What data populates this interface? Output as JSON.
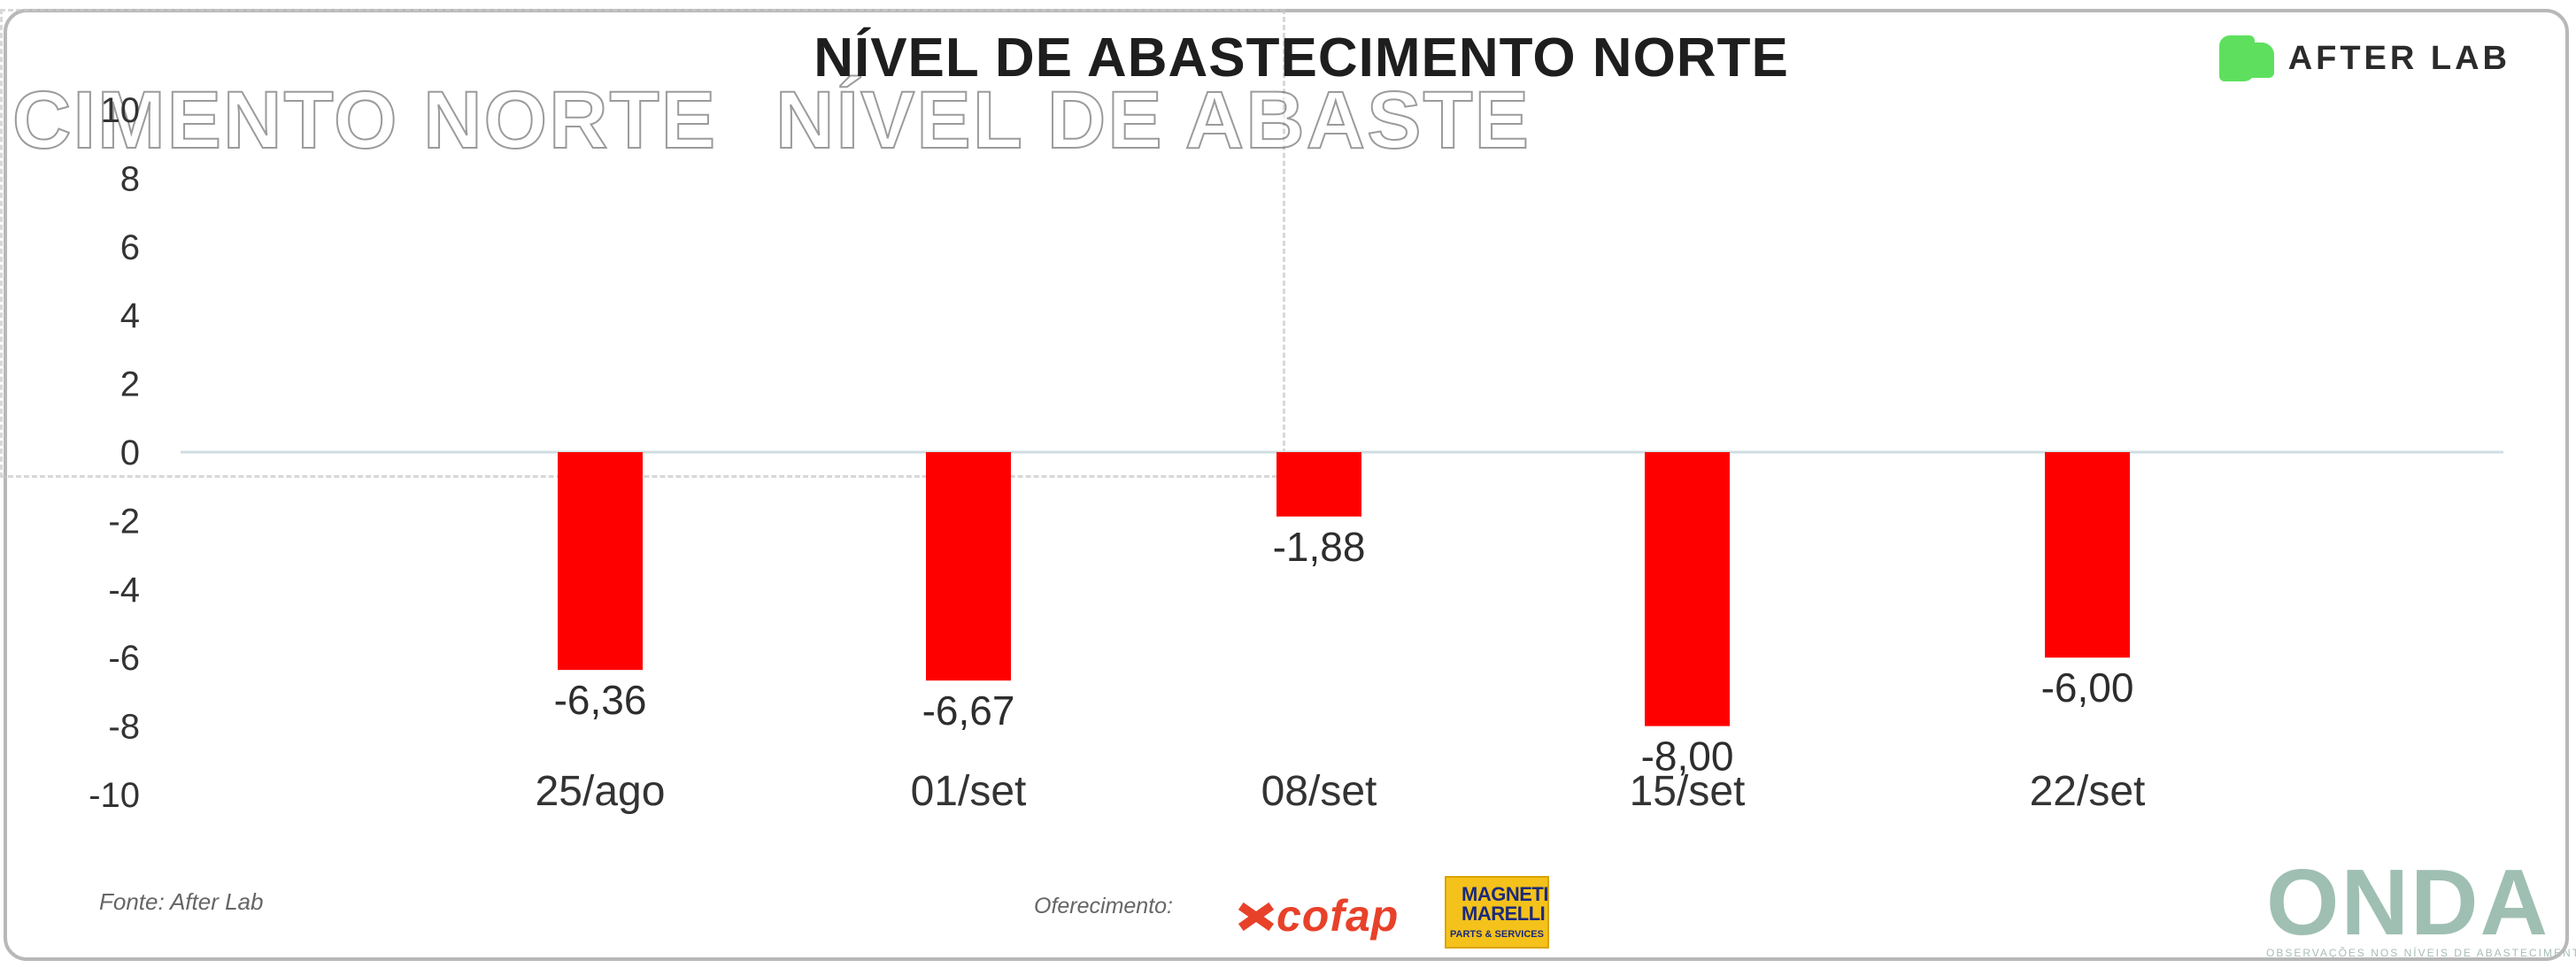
{
  "header": {
    "title": "NÍVEL DE ABASTECIMENTO NORTE",
    "ghost_left": "CIMENTO NORTE",
    "ghost_right": "NÍVEL DE ABASTE",
    "brand": "AFTER LAB",
    "brand_icon": "afterlab-logo-icon",
    "brand_color": "#5ee05e"
  },
  "chart_data": {
    "type": "bar",
    "title": "NÍVEL DE ABASTECIMENTO NORTE",
    "categories": [
      "25/ago",
      "01/set",
      "08/set",
      "15/set",
      "22/set"
    ],
    "values": [
      -6.36,
      -6.67,
      -1.88,
      -8.0,
      -6.0
    ],
    "data_labels": [
      "-6,36",
      "-6,67",
      "-1,88",
      "-8,00",
      "-6,00"
    ],
    "bar_color": "#ff0000",
    "ylim": [
      -10,
      10
    ],
    "yticks": [
      10,
      8,
      6,
      4,
      2,
      0,
      -2,
      -4,
      -6,
      -8,
      -10
    ],
    "ytick_labels": [
      "10",
      "8",
      "6",
      "4",
      "2",
      "0",
      "-2",
      "-4",
      "-6",
      "-8",
      "-10"
    ],
    "xlabel": "",
    "ylabel": "",
    "grid": false,
    "legend": "none"
  },
  "footer": {
    "source": "Fonte: After Lab",
    "sponsor_label": "Oferecimento:",
    "sponsor1": "cofap",
    "sponsor1_color": "#e8412a",
    "sponsor2_top": "MAGNETI MARELLI",
    "sponsor2_sub": "PARTS & SERVICES",
    "sponsor2_color": "#f4c21b",
    "brand2": "ONDA",
    "brand2_sub": "OBSERVAÇÕES NOS NÍVEIS DE ABASTECIMENTO E PREÇOS",
    "brand2_color": "#9fbfb3"
  }
}
